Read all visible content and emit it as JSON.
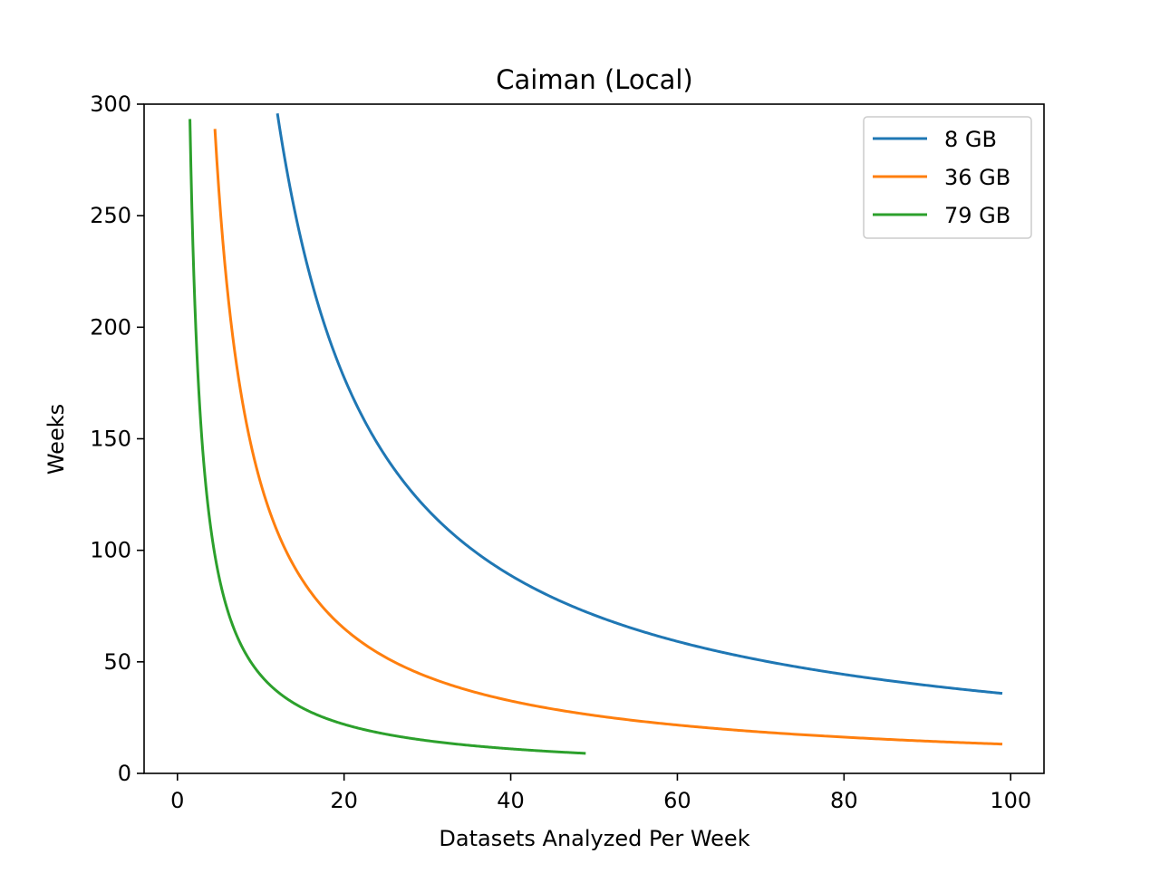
{
  "chart_data": {
    "type": "line",
    "title": "Caiman (Local)",
    "xlabel": "Datasets Analyzed Per Week",
    "ylabel": "Weeks",
    "xlim": [
      -4,
      104
    ],
    "ylim": [
      0,
      300
    ],
    "x_ticks": [
      0,
      20,
      40,
      60,
      80,
      100
    ],
    "y_ticks": [
      0,
      50,
      100,
      150,
      200,
      250,
      300
    ],
    "x_tick_labels": [
      "0",
      "20",
      "40",
      "60",
      "80",
      "100"
    ],
    "y_tick_labels": [
      "0",
      "50",
      "100",
      "150",
      "200",
      "250",
      "300"
    ],
    "grid": false,
    "legend_position": "top-right",
    "series": [
      {
        "name": "8 GB",
        "color": "#1f77b4",
        "x_range": [
          12,
          99
        ],
        "curve": "k/x",
        "k": 3550
      },
      {
        "name": "36 GB",
        "color": "#ff7f0e",
        "x_range": [
          4.5,
          99
        ],
        "curve": "k/x",
        "k": 1300
      },
      {
        "name": "79 GB",
        "color": "#2ca02c",
        "x_range": [
          1.5,
          49
        ],
        "curve": "k/x",
        "k": 440
      }
    ]
  }
}
